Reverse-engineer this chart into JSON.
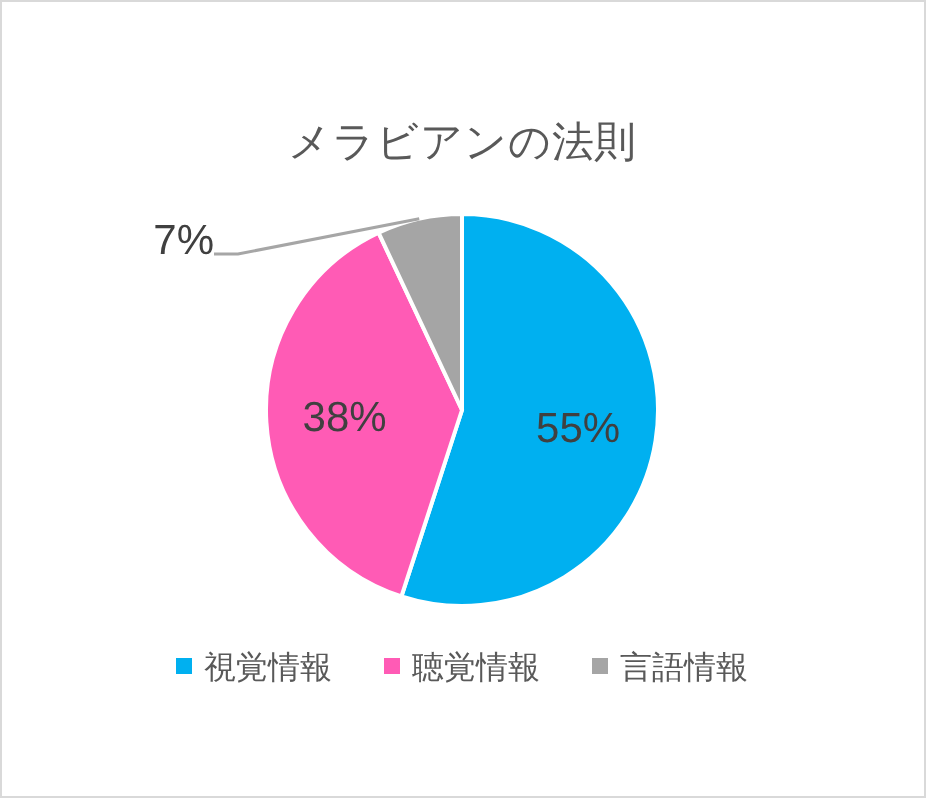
{
  "chart_data": {
    "type": "pie",
    "title": "メラビアンの法則",
    "categories": [
      "視覚情報",
      "聴覚情報",
      "言語情報"
    ],
    "values": [
      55,
      38,
      7
    ],
    "colors": [
      "#00b0f0",
      "#ff5bb5",
      "#a5a5a5"
    ],
    "value_labels": [
      "55%",
      "38%",
      "7%"
    ],
    "legend": "bottom"
  }
}
